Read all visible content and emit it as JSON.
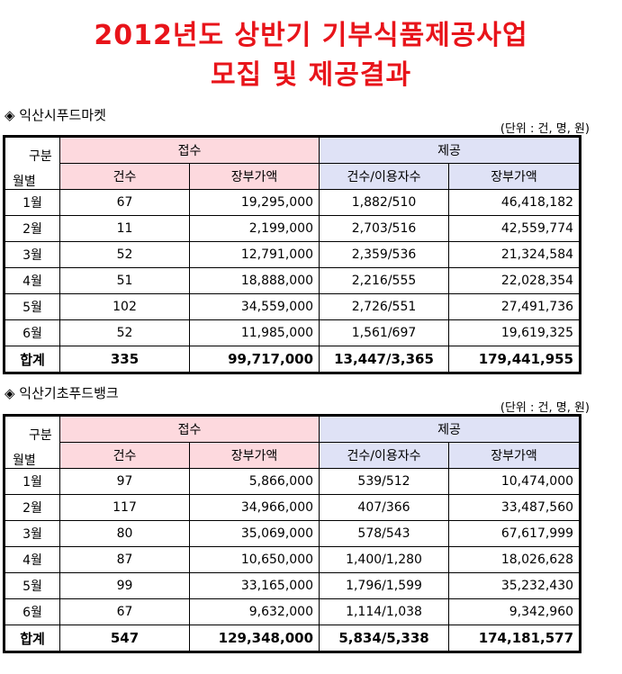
{
  "title_line1": "2012년도 상반기 기부식품제공사업",
  "title_line2": "모집 및 제공결과",
  "unit_note": "(단위 : 건, 명, 원)",
  "headers": {
    "gubun_top": "구분",
    "gubun_bottom": "월별",
    "receive": "접수",
    "provide": "제공",
    "count": "건수",
    "book_value": "장부가액",
    "count_users": "건수/이용자수",
    "book_value2": "장부가액"
  },
  "sections": [
    {
      "name": "◈ 익산시푸드마켓",
      "rows": [
        {
          "month": "1월",
          "rcount": "67",
          "rvalue": "19,295,000",
          "pcount": "1,882/510",
          "pvalue": "46,418,182"
        },
        {
          "month": "2월",
          "rcount": "11",
          "rvalue": "2,199,000",
          "pcount": "2,703/516",
          "pvalue": "42,559,774"
        },
        {
          "month": "3월",
          "rcount": "52",
          "rvalue": "12,791,000",
          "pcount": "2,359/536",
          "pvalue": "21,324,584"
        },
        {
          "month": "4월",
          "rcount": "51",
          "rvalue": "18,888,000",
          "pcount": "2,216/555",
          "pvalue": "22,028,354"
        },
        {
          "month": "5월",
          "rcount": "102",
          "rvalue": "34,559,000",
          "pcount": "2,726/551",
          "pvalue": "27,491,736"
        },
        {
          "month": "6월",
          "rcount": "52",
          "rvalue": "11,985,000",
          "pcount": "1,561/697",
          "pvalue": "19,619,325"
        }
      ],
      "total": {
        "month": "합계",
        "rcount": "335",
        "rvalue": "99,717,000",
        "pcount": "13,447/3,365",
        "pvalue": "179,441,955"
      }
    },
    {
      "name": "◈ 익산기초푸드뱅크",
      "rows": [
        {
          "month": "1월",
          "rcount": "97",
          "rvalue": "5,866,000",
          "pcount": "539/512",
          "pvalue": "10,474,000"
        },
        {
          "month": "2월",
          "rcount": "117",
          "rvalue": "34,966,000",
          "pcount": "407/366",
          "pvalue": "33,487,560"
        },
        {
          "month": "3월",
          "rcount": "80",
          "rvalue": "35,069,000",
          "pcount": "578/543",
          "pvalue": "67,617,999"
        },
        {
          "month": "4월",
          "rcount": "87",
          "rvalue": "10,650,000",
          "pcount": "1,400/1,280",
          "pvalue": "18,026,628"
        },
        {
          "month": "5월",
          "rcount": "99",
          "rvalue": "33,165,000",
          "pcount": "1,796/1,599",
          "pvalue": "35,232,430"
        },
        {
          "month": "6월",
          "rcount": "67",
          "rvalue": "9,632,000",
          "pcount": "1,114/1,038",
          "pvalue": "9,342,960"
        }
      ],
      "total": {
        "month": "합계",
        "rcount": "547",
        "rvalue": "129,348,000",
        "pcount": "5,834/5,338",
        "pvalue": "174,181,577"
      }
    }
  ]
}
